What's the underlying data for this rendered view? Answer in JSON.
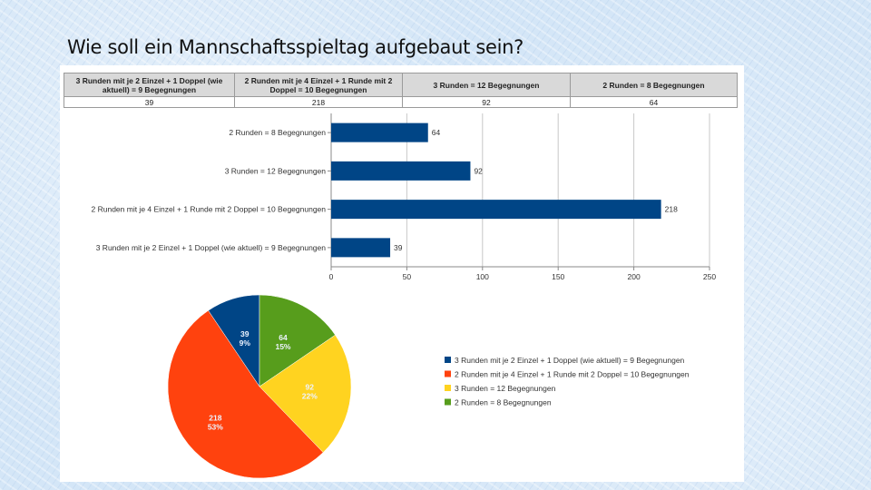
{
  "slide": {
    "title": "Wie soll ein Mannschaftsspieltag aufgebaut sein?"
  },
  "table": {
    "headers": [
      "3 Runden mit je 2 Einzel + 1 Doppel (wie aktuell) = 9 Begegnungen",
      "2 Runden mit je 4 Einzel + 1 Runde mit 2 Doppel = 10 Begegnungen",
      "3 Runden = 12 Begegnungen",
      "2 Runden = 8 Begegnungen"
    ],
    "values": [
      "39",
      "218",
      "92",
      "64"
    ]
  },
  "colors": {
    "bar": "#004586",
    "slice_blue": "#004586",
    "slice_orange": "#ff420e",
    "slice_yellow": "#ffd320",
    "slice_green": "#579d1c"
  },
  "chart_data": [
    {
      "type": "bar",
      "orientation": "horizontal",
      "categories": [
        "2 Runden = 8 Begegnungen",
        "3 Runden = 12 Begegnungen",
        "2 Runden mit je 4 Einzel + 1 Runde mit 2 Doppel = 10 Begegnungen",
        "3 Runden mit je 2 Einzel + 1 Doppel (wie aktuell) = 9 Begegnungen"
      ],
      "values": [
        64,
        92,
        218,
        39
      ],
      "data_labels": [
        "64",
        "92",
        "218",
        "39"
      ],
      "xlim": [
        0,
        250
      ],
      "xticks": [
        0,
        50,
        100,
        150,
        200,
        250
      ],
      "grid": true
    },
    {
      "type": "pie",
      "slices": [
        {
          "label": "3 Runden mit je 2 Einzel + 1 Doppel (wie aktuell) = 9 Begegnungen",
          "value": 39,
          "percent": "9%",
          "color": "#004586"
        },
        {
          "label": "2 Runden = 8 Begegnungen",
          "value": 64,
          "percent": "15%",
          "color": "#579d1c"
        },
        {
          "label": "3 Runden = 12 Begegnungen",
          "value": 92,
          "percent": "22%",
          "color": "#ffd320"
        },
        {
          "label": "2 Runden mit je 4 Einzel + 1 Runde mit 2 Doppel = 10 Begegnungen",
          "value": 218,
          "percent": "53%",
          "color": "#ff420e"
        }
      ],
      "legend": [
        {
          "label": "3 Runden mit je 2 Einzel + 1 Doppel (wie aktuell) = 9 Begegnungen",
          "color": "#004586"
        },
        {
          "label": "2 Runden mit je 4 Einzel + 1 Runde mit 2 Doppel = 10 Begegnungen",
          "color": "#ff420e"
        },
        {
          "label": "3 Runden = 12 Begegnungen",
          "color": "#ffd320"
        },
        {
          "label": "2 Runden = 8 Begegnungen",
          "color": "#579d1c"
        }
      ],
      "legend_position": "right"
    }
  ]
}
